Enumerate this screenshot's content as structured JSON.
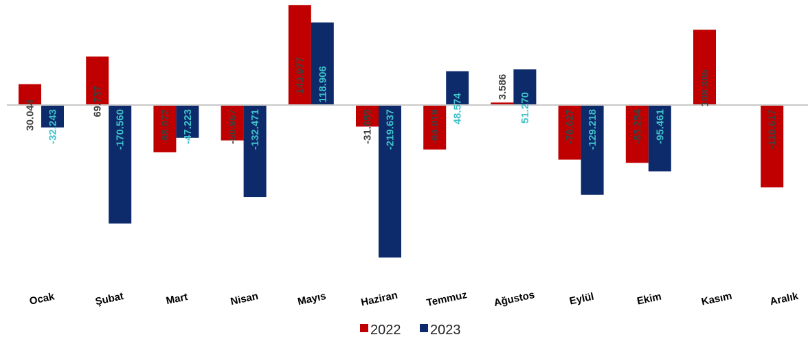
{
  "chart_data": {
    "type": "bar",
    "categories": [
      "Ocak",
      "Şubat",
      "Mart",
      "Nisan",
      "Mayıs",
      "Haziran",
      "Temmuz",
      "Ağustos",
      "Eylül",
      "Ekim",
      "Kasım",
      "Aralık"
    ],
    "series": [
      {
        "name": "2022",
        "color": "#c00000",
        "values": [
          30044,
          69737,
          -68072,
          -50967,
          143977,
          -31059,
          -64019,
          3586,
          -78627,
          -83254,
          108305,
          -118617
        ],
        "labels": [
          "30.044",
          "69.737",
          "-68.072",
          "-50.967",
          "143.977",
          "-31.059",
          "-64.019",
          "3.586",
          "-78.627",
          "-83.254",
          "108.305",
          "-118.617"
        ],
        "label_color": "#404040"
      },
      {
        "name": "2023",
        "color": "#0d2a6b",
        "values": [
          -32243,
          -170560,
          -47223,
          -132471,
          118906,
          -219637,
          48574,
          51270,
          -129218,
          -95461,
          null,
          null
        ],
        "labels": [
          "-32.243",
          "-170.560",
          "-47.223",
          "-132.471",
          "118.906",
          "-219.637",
          "48.574",
          "51.270",
          "-129.218",
          "-95.461",
          null,
          null
        ],
        "label_color": "#3fc1c9"
      }
    ],
    "legend_position": "bottom",
    "grid": false,
    "axis_color": "#c8c8c8"
  }
}
